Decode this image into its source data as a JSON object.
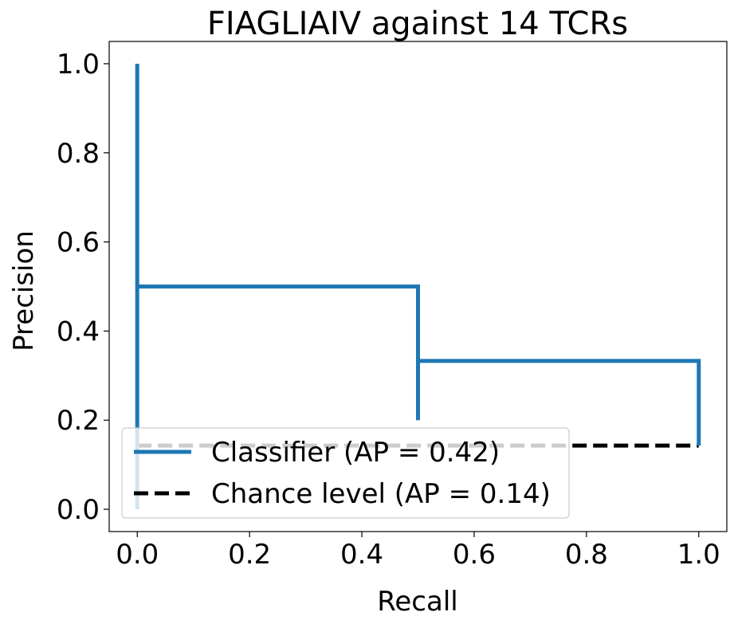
{
  "chart_data": {
    "type": "line",
    "title": "FIAGLIAIV against 14 TCRs",
    "xlabel": "Recall",
    "ylabel": "Precision",
    "xlim": [
      -0.05,
      1.05
    ],
    "ylim": [
      -0.05,
      1.05
    ],
    "xticks": [
      "0.0",
      "0.2",
      "0.4",
      "0.6",
      "0.8",
      "1.0"
    ],
    "yticks": [
      "0.0",
      "0.2",
      "0.4",
      "0.6",
      "0.8",
      "1.0"
    ],
    "grid": false,
    "legend_position": "lower-left",
    "series": [
      {
        "name": "Classifier (AP = 0.42)",
        "color": "#1f77b4",
        "style": "solid",
        "x": [
          0.0,
          0.0,
          0.0,
          0.0,
          0.5,
          0.5,
          0.5,
          0.5,
          1.0,
          1.0
        ],
        "y": [
          1.0,
          0.0,
          0.143,
          0.5,
          0.5,
          0.2,
          0.2,
          0.333,
          0.333,
          0.143
        ]
      },
      {
        "name": "Chance level (AP = 0.14)",
        "color": "#000000",
        "style": "dashed",
        "x": [
          0.0,
          1.0
        ],
        "y": [
          0.143,
          0.143
        ]
      }
    ]
  }
}
